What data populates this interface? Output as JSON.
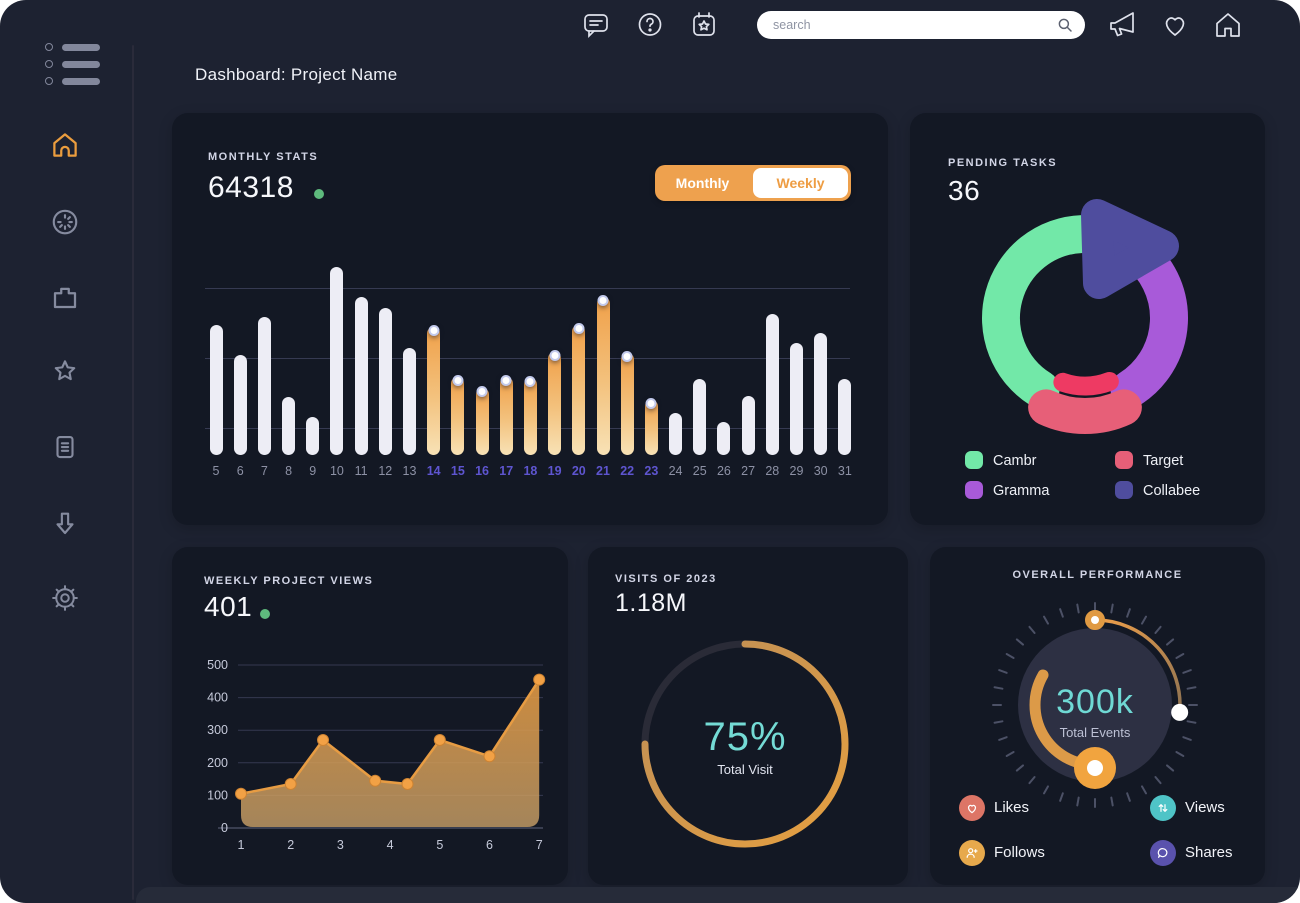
{
  "header": {
    "title": "Dashboard: Project Name"
  },
  "topbar": {
    "search": {
      "placeholder": "search"
    },
    "left_icons": [
      "chat",
      "help",
      "calendar-star"
    ],
    "right_icons": [
      "megaphone",
      "heart",
      "home"
    ]
  },
  "sidebar": {
    "items": [
      "home",
      "timer",
      "projects",
      "favorites",
      "documents",
      "downloads",
      "settings"
    ],
    "active_item": "home",
    "active_color": "#eb9d3e"
  },
  "cards": {
    "monthly_stats": {
      "label": "MONTHLY STATS",
      "value": "64318",
      "toggle": {
        "options": [
          "Monthly",
          "Weekly"
        ],
        "selected": "Monthly",
        "color": "#eea14e"
      }
    },
    "pending_tasks": {
      "label": "PENDING TASKS",
      "value": "36",
      "legend": [
        {
          "label": "Cambr",
          "color": "#72e8a8"
        },
        {
          "label": "Target",
          "color": "#e75f78"
        },
        {
          "label": "Gramma",
          "color": "#a85ad9"
        },
        {
          "label": "Collabee",
          "color": "#4f4d9e"
        }
      ]
    },
    "weekly_views": {
      "label": "WEEKLY PROJECT VIEWS",
      "value": "401"
    },
    "visits": {
      "label": "VISITS OF 2023",
      "value": "1.18M",
      "percent_label": "75%",
      "sublabel": "Total Visit"
    },
    "performance": {
      "label": "OVERALL PERFORMANCE",
      "center_value": "300k",
      "center_sublabel": "Total Events",
      "legend": [
        {
          "label": "Likes",
          "color": "#dd7566",
          "icon": "heart"
        },
        {
          "label": "Views",
          "color": "#4fc4c7",
          "icon": "up-down-arrows"
        },
        {
          "label": "Follows",
          "color": "#e7a94c",
          "icon": "user-plus"
        },
        {
          "label": "Shares",
          "color": "#5a52ad",
          "icon": "chat-bubble"
        }
      ]
    }
  },
  "chart_data": [
    {
      "id": "monthly_stats_bars",
      "type": "bar",
      "title": "MONTHLY STATS",
      "categories": [
        "5",
        "6",
        "7",
        "8",
        "9",
        "10",
        "11",
        "12",
        "13",
        "14",
        "15",
        "16",
        "17",
        "18",
        "19",
        "20",
        "21",
        "22",
        "23",
        "24",
        "25",
        "26",
        "27",
        "28",
        "29",
        "30",
        "31"
      ],
      "values": [
        130,
        100,
        138,
        58,
        38,
        188,
        158,
        147,
        107,
        128,
        78,
        67,
        78,
        77,
        103,
        130,
        158,
        102,
        55,
        42,
        76,
        33,
        59,
        141,
        112,
        122,
        76
      ],
      "ylim": [
        0,
        200
      ],
      "highlight_index_range": [
        9,
        18
      ],
      "bar_color": "#ededf5",
      "highlight_color": "#f0a049",
      "highlight_tick_color": "#5e55d0",
      "grid": true
    },
    {
      "id": "pending_tasks_donut",
      "type": "pie",
      "title": "PENDING TASKS",
      "segments": [
        {
          "label": "Cambr",
          "value": 40,
          "color": "#72e8a8",
          "start_deg": 212,
          "end_deg": 358
        },
        {
          "label": "Target",
          "value": 15,
          "color": "#e75f78",
          "start_deg": 155,
          "end_deg": 205,
          "inner_color": "#ee3a63"
        },
        {
          "label": "Gramma",
          "value": 30,
          "color": "#a85ad9",
          "start_deg": 38,
          "end_deg": 148
        },
        {
          "label": "Collabee",
          "value": 15,
          "color": "#4f4d9e",
          "shape": "triangle"
        }
      ],
      "legend_position": "bottom"
    },
    {
      "id": "weekly_views_area",
      "type": "area",
      "title": "WEEKLY PROJECT VIEWS",
      "x": [
        1,
        2,
        2.65,
        3.7,
        4.35,
        5,
        6,
        7
      ],
      "y": [
        105,
        135,
        270,
        145,
        135,
        270,
        220,
        455
      ],
      "xticks": [
        1,
        2,
        3,
        4,
        5,
        6,
        7
      ],
      "yticks": [
        0,
        100,
        200,
        300,
        400,
        500
      ],
      "ylim": [
        0,
        500
      ],
      "line_color": "#e79c43",
      "dot_color": "#f2a145",
      "grid": true
    },
    {
      "id": "visits_ring",
      "type": "donut-progress",
      "title": "VISITS OF 2023",
      "percent": 75,
      "filled_color_start": "#bd8e58",
      "filled_color_end": "#e6a040",
      "track_color": "#2a2b37"
    },
    {
      "id": "performance_gauge",
      "type": "gauge",
      "title": "OVERALL PERFORMANCE",
      "outer_arc_deg": [
        0,
        95
      ],
      "inner_arc_deg": [
        180,
        300
      ],
      "arc_color": "#e09a43",
      "knob_color": "#f1a43f",
      "face_color": "#2d3043",
      "tick_color": "#4c5166",
      "teal": "#6fd9d4"
    }
  ]
}
